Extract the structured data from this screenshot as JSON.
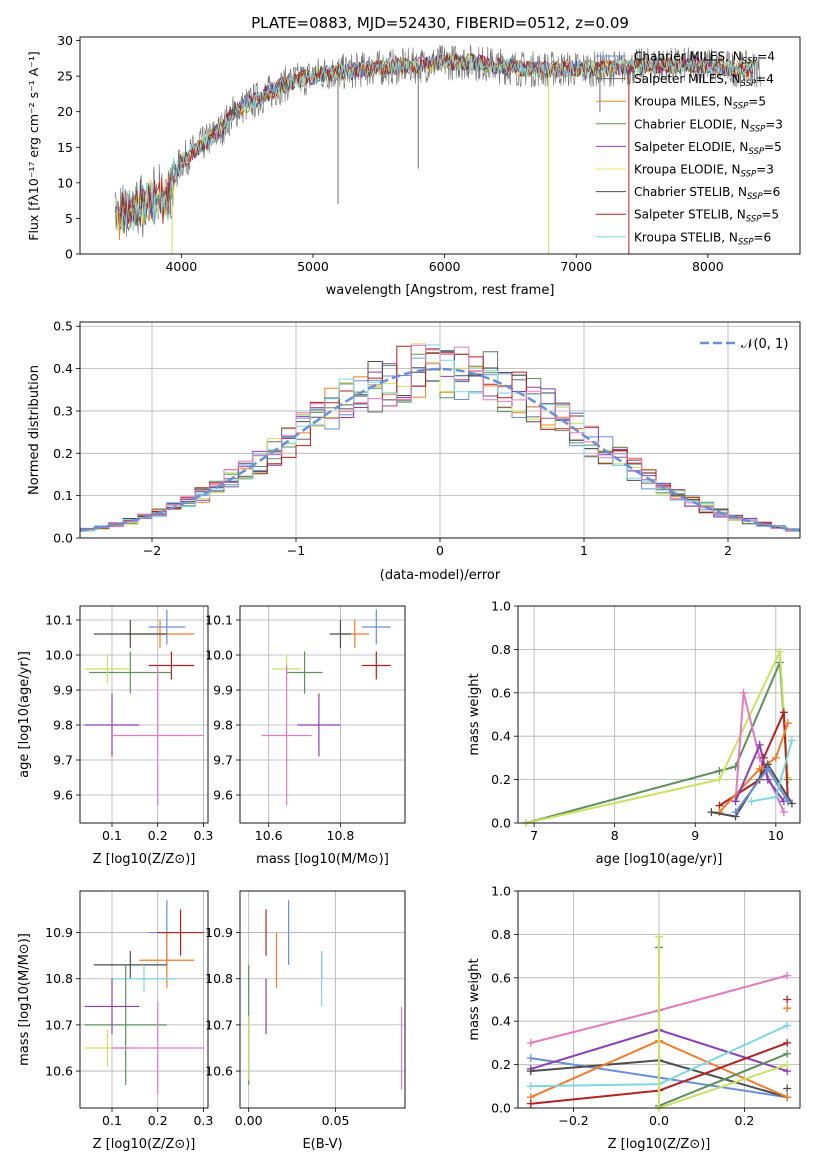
{
  "colors": [
    "#6a8fd6",
    "#f07c2d",
    "#6d6d6d",
    "#f6a800",
    "#5f8f5f",
    "#8b3fb3",
    "#f0e268",
    "#4d4d4d",
    "#b22222",
    "#7fd7e0",
    "#e07cbf",
    "#c7e264"
  ],
  "chart_data": [
    {
      "type": "line",
      "title": "PLATE=0883, MJD=52430, FIBERID=0512, z=0.09",
      "xlabel": "wavelength [Angstrom, rest frame]",
      "ylabel": "Flux [fλ10⁻¹⁷ erg cm⁻² s⁻¹ A⁻¹]",
      "xlim": [
        3230,
        8700
      ],
      "ylim": [
        0,
        30.5
      ],
      "xticks": [
        4000,
        5000,
        6000,
        7000,
        8000
      ],
      "yticks": [
        0,
        5,
        10,
        15,
        20,
        25,
        30
      ],
      "legend": "upper right",
      "series": [
        {
          "name": "Chabrier MILES, N_SSP=4",
          "color": "#6a8fd6"
        },
        {
          "name": "Salpeter MILES, N_SSP=4",
          "color": "#6d6d6d"
        },
        {
          "name": "Kroupa MILES, N_SSP=5",
          "color": "#d8921a"
        },
        {
          "name": "Chabrier ELODIE, N_SSP=3",
          "color": "#5f8f5f"
        },
        {
          "name": "Salpeter ELODIE, N_SSP=5",
          "color": "#9a3fc0"
        },
        {
          "name": "Kroupa ELODIE, N_SSP=3",
          "color": "#e6e36a"
        },
        {
          "name": "Chabrier STELIB, N_SSP=6",
          "color": "#4d4d4d"
        },
        {
          "name": "Salpeter STELIB, N_SSP=5",
          "color": "#b22222"
        },
        {
          "name": "Kroupa STELIB, N_SSP=6",
          "color": "#7fd7e0"
        }
      ],
      "trend": {
        "x": [
          3500,
          3550,
          3700,
          3900,
          3950,
          4000,
          4100,
          4200,
          4300,
          4400,
          4500,
          4600,
          4700,
          4800,
          4900,
          5000,
          5100,
          5200,
          5400,
          5600,
          5800,
          6000,
          6200,
          6400,
          6600,
          6800,
          7000,
          7200,
          7400,
          7600,
          7800,
          8000,
          8200,
          8400
        ],
        "y": [
          6,
          5.5,
          7,
          8,
          11,
          13,
          14.5,
          16,
          17.5,
          20,
          21,
          22,
          23,
          24,
          24.5,
          25,
          25.5,
          25.5,
          26,
          26.3,
          26.5,
          27,
          27,
          26.5,
          26,
          26,
          26,
          26,
          26.2,
          26.5,
          26.5,
          26.5,
          26,
          26
        ]
      }
    },
    {
      "type": "histogram",
      "xlabel": "(data-model)/error",
      "ylabel": "Normed distribution",
      "xlim": [
        -2.5,
        2.5
      ],
      "ylim": [
        0,
        0.51
      ],
      "xticks": [
        -2,
        -1,
        0,
        1,
        2
      ],
      "yticks": [
        0.0,
        0.1,
        0.2,
        0.3,
        0.4,
        0.5
      ],
      "bin_edges_from": -2.5,
      "bin_width": 0.1,
      "reference": {
        "name": "𝒩(0, 1)",
        "mean": 0,
        "sigma": 1,
        "color": "#6a8fd6"
      },
      "legend": "upper right"
    },
    {
      "type": "errorbar",
      "xlabel": "Z [log10(Z/Z⊙)]",
      "ylabel": "age  [log10(age/yr)]",
      "xlim": [
        0.03,
        0.31
      ],
      "ylim": [
        9.52,
        10.14
      ],
      "xticks": [
        0.1,
        0.2,
        0.3
      ],
      "yticks": [
        9.6,
        9.7,
        9.8,
        9.9,
        10.0,
        10.1
      ],
      "points": [
        {
          "x": 0.22,
          "xerr": 0.04,
          "y": 10.08,
          "yerr": 0.05,
          "color": "#6a8fd6"
        },
        {
          "x": 0.205,
          "xerr": 0.075,
          "y": 10.06,
          "yerr": 0.04,
          "color": "#f07c2d"
        },
        {
          "x": 0.14,
          "xerr": 0.08,
          "y": 10.06,
          "yerr": 0.04,
          "color": "#4d4d4d"
        },
        {
          "x": 0.23,
          "xerr": 0.05,
          "y": 9.97,
          "yerr": 0.04,
          "color": "#b22222"
        },
        {
          "x": 0.14,
          "xerr": 0.09,
          "y": 9.95,
          "yerr": 0.06,
          "color": "#5f8f5f"
        },
        {
          "x": 0.09,
          "xerr": 0.05,
          "y": 9.96,
          "yerr": 0.04,
          "color": "#c7e264"
        },
        {
          "x": 0.1,
          "xerr": 0.06,
          "y": 9.8,
          "yerr": 0.09,
          "color": "#8b3fb3"
        },
        {
          "x": 0.2,
          "xerr": 0.1,
          "y": 9.77,
          "yerr": 0.2,
          "color": "#e07cbf"
        }
      ]
    },
    {
      "type": "errorbar",
      "xlabel": "mass [log10(M/M⊙)]",
      "ylabel": "",
      "xlim": [
        10.52,
        10.98
      ],
      "ylim": [
        9.52,
        10.14
      ],
      "xticks": [
        10.6,
        10.8
      ],
      "yticks": [
        9.6,
        9.7,
        9.8,
        9.9,
        10.0,
        10.1
      ],
      "points": [
        {
          "x": 10.9,
          "xerr": 0.04,
          "y": 10.08,
          "yerr": 0.05,
          "color": "#6a8fd6"
        },
        {
          "x": 10.84,
          "xerr": 0.04,
          "y": 10.06,
          "yerr": 0.04,
          "color": "#f07c2d"
        },
        {
          "x": 10.8,
          "xerr": 0.03,
          "y": 10.06,
          "yerr": 0.04,
          "color": "#4d4d4d"
        },
        {
          "x": 10.9,
          "xerr": 0.04,
          "y": 9.97,
          "yerr": 0.04,
          "color": "#b22222"
        },
        {
          "x": 10.7,
          "xerr": 0.05,
          "y": 9.95,
          "yerr": 0.06,
          "color": "#5f8f5f"
        },
        {
          "x": 10.65,
          "xerr": 0.04,
          "y": 9.96,
          "yerr": 0.04,
          "color": "#c7e264"
        },
        {
          "x": 10.74,
          "xerr": 0.06,
          "y": 9.8,
          "yerr": 0.09,
          "color": "#8b3fb3"
        },
        {
          "x": 10.65,
          "xerr": 0.07,
          "y": 9.77,
          "yerr": 0.2,
          "color": "#e07cbf"
        }
      ]
    },
    {
      "type": "line",
      "xlabel": "age  [log10(age/yr)]",
      "ylabel": "mass weight",
      "xlim": [
        6.8,
        10.3
      ],
      "ylim": [
        0,
        1.0
      ],
      "xticks": [
        7,
        8,
        9,
        10
      ],
      "yticks": [
        0.0,
        0.2,
        0.4,
        0.6,
        0.8,
        1.0
      ],
      "series": [
        {
          "color": "#5f8f5f",
          "x": [
            6.9,
            9.3,
            9.5,
            10.05,
            10.15
          ],
          "y": [
            0.0,
            0.24,
            0.26,
            0.74,
            0.2
          ]
        },
        {
          "color": "#c7e264",
          "x": [
            6.9,
            9.3,
            10.05,
            10.15
          ],
          "y": [
            0.0,
            0.2,
            0.79,
            0.21
          ]
        },
        {
          "color": "#e07cbf",
          "x": [
            9.5,
            9.6,
            9.8,
            10.1
          ],
          "y": [
            0.1,
            0.6,
            0.3,
            0.05
          ]
        },
        {
          "color": "#b22222",
          "x": [
            9.3,
            9.8,
            9.85,
            10.1,
            10.15
          ],
          "y": [
            0.08,
            0.2,
            0.3,
            0.51,
            0.1
          ]
        },
        {
          "color": "#f07c2d",
          "x": [
            9.3,
            9.8,
            10.0,
            10.15
          ],
          "y": [
            0.05,
            0.25,
            0.3,
            0.46
          ]
        },
        {
          "color": "#8b3fb3",
          "x": [
            9.5,
            9.8,
            9.9,
            10.1
          ],
          "y": [
            0.1,
            0.36,
            0.2,
            0.1
          ]
        },
        {
          "color": "#4d4d4d",
          "x": [
            9.2,
            9.5,
            9.9,
            10.2
          ],
          "y": [
            0.05,
            0.03,
            0.27,
            0.09
          ]
        },
        {
          "color": "#6a8fd6",
          "x": [
            9.5,
            9.9,
            10.15
          ],
          "y": [
            0.05,
            0.25,
            0.1
          ]
        },
        {
          "color": "#7fd7e0",
          "x": [
            9.7,
            10.0,
            10.2
          ],
          "y": [
            0.1,
            0.12,
            0.38
          ]
        }
      ]
    },
    {
      "type": "errorbar",
      "xlabel": "Z [log10(Z/Z⊙)]",
      "ylabel": "mass [log10(M/M⊙)]",
      "xlim": [
        0.03,
        0.31
      ],
      "ylim": [
        10.52,
        10.99
      ],
      "xticks": [
        0.1,
        0.2,
        0.3
      ],
      "yticks": [
        10.6,
        10.7,
        10.8,
        10.9
      ],
      "points": [
        {
          "x": 0.22,
          "xerr": 0.04,
          "y": 10.9,
          "yerr": 0.07,
          "color": "#6a8fd6"
        },
        {
          "x": 0.22,
          "xerr": 0.06,
          "y": 10.84,
          "yerr": 0.06,
          "color": "#f07c2d"
        },
        {
          "x": 0.14,
          "xerr": 0.08,
          "y": 10.83,
          "yerr": 0.03,
          "color": "#4d4d4d"
        },
        {
          "x": 0.25,
          "xerr": 0.05,
          "y": 10.9,
          "yerr": 0.05,
          "color": "#b22222"
        },
        {
          "x": 0.17,
          "xerr": 0.07,
          "y": 10.8,
          "yerr": 0.03,
          "color": "#7fd7e0"
        },
        {
          "x": 0.13,
          "xerr": 0.09,
          "y": 10.7,
          "yerr": 0.13,
          "color": "#5f8f5f"
        },
        {
          "x": 0.09,
          "xerr": 0.05,
          "y": 10.65,
          "yerr": 0.04,
          "color": "#c7e264"
        },
        {
          "x": 0.1,
          "xerr": 0.06,
          "y": 10.74,
          "yerr": 0.06,
          "color": "#8b3fb3"
        },
        {
          "x": 0.2,
          "xerr": 0.1,
          "y": 10.65,
          "yerr": 0.1,
          "color": "#e07cbf"
        }
      ]
    },
    {
      "type": "errorbar",
      "xlabel": "E(B-V)",
      "ylabel": "",
      "xlim": [
        -0.005,
        0.09
      ],
      "ylim": [
        10.52,
        10.99
      ],
      "xticks": [
        0.0,
        0.05
      ],
      "yticks": [
        10.6,
        10.7,
        10.8,
        10.9
      ],
      "points": [
        {
          "x": 0.0,
          "y": 10.7,
          "yerr": 0.13,
          "color": "#5f8f5f"
        },
        {
          "x": 0.0,
          "y": 10.65,
          "yerr": 0.07,
          "color": "#c7e264"
        },
        {
          "x": 0.01,
          "y": 10.74,
          "yerr": 0.06,
          "color": "#8b3fb3"
        },
        {
          "x": 0.01,
          "y": 10.9,
          "yerr": 0.05,
          "color": "#b22222"
        },
        {
          "x": 0.016,
          "y": 10.84,
          "yerr": 0.06,
          "color": "#f07c2d"
        },
        {
          "x": 0.023,
          "y": 10.9,
          "yerr": 0.07,
          "color": "#6a8fd6"
        },
        {
          "x": 0.042,
          "y": 10.83,
          "yerr": 0.03,
          "color": "#4d4d4d"
        },
        {
          "x": 0.042,
          "y": 10.8,
          "yerr": 0.06,
          "color": "#7fd7e0"
        },
        {
          "x": 0.088,
          "y": 10.65,
          "yerr": 0.09,
          "color": "#e07cbf"
        }
      ]
    },
    {
      "type": "line",
      "xlabel": "Z [log10(Z/Z⊙)]",
      "ylabel": "mass weight",
      "xlim": [
        -0.33,
        0.33
      ],
      "ylim": [
        0,
        1.0
      ],
      "xticks": [
        -0.2,
        0.0,
        0.2
      ],
      "yticks": [
        0.0,
        0.2,
        0.4,
        0.6,
        0.8,
        1.0
      ],
      "series": [
        {
          "color": "#e07cbf",
          "x": [
            -0.3,
            0.0,
            0.3
          ],
          "y": [
            0.3,
            0.45,
            0.61
          ]
        },
        {
          "color": "#6a8fd6",
          "x": [
            -0.3,
            0.0,
            0.3
          ],
          "y": [
            0.23,
            0.14,
            0.05
          ]
        },
        {
          "color": "#8b3fb3",
          "x": [
            -0.3,
            0.0,
            0.3
          ],
          "y": [
            0.18,
            0.36,
            0.17
          ]
        },
        {
          "color": "#4d4d4d",
          "x": [
            -0.3,
            0.0,
            0.3
          ],
          "y": [
            0.17,
            0.22,
            0.05
          ]
        },
        {
          "color": "#f07c2d",
          "x": [
            -0.3,
            0.0,
            0.3
          ],
          "y": [
            0.05,
            0.31,
            0.05
          ]
        },
        {
          "color": "#b22222",
          "x": [
            -0.3,
            0.0,
            0.3
          ],
          "y": [
            0.02,
            0.08,
            0.3
          ]
        },
        {
          "color": "#7fd7e0",
          "x": [
            -0.3,
            0.0,
            0.3
          ],
          "y": [
            0.1,
            0.11,
            0.38
          ]
        },
        {
          "color": "#5f8f5f",
          "x": [
            0.0,
            0.0,
            0.3
          ],
          "y": [
            0.74,
            0.01,
            0.25
          ]
        },
        {
          "color": "#c7e264",
          "x": [
            0.0,
            0.0,
            0.3
          ],
          "y": [
            0.79,
            0.0,
            0.2
          ]
        }
      ],
      "extra_markers": [
        {
          "x": 0.3,
          "y": 0.5,
          "color": "#b22222"
        },
        {
          "x": 0.3,
          "y": 0.46,
          "color": "#f07c2d"
        },
        {
          "x": 0.3,
          "y": 0.09,
          "color": "#4d4d4d"
        }
      ]
    }
  ]
}
